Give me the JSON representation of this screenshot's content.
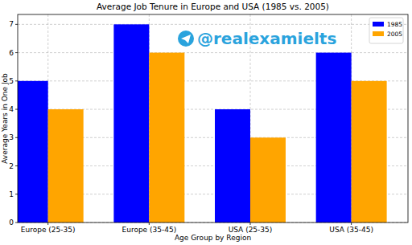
{
  "chart_data": {
    "type": "bar",
    "title": "Average Job Tenure in Europe and USA (1985 vs. 2005)",
    "x_label": "Age Group by Region",
    "y_label": "Average Years in One Job",
    "annotations": [
      "@realexamielts"
    ],
    "categories": [
      "Europe (25-35)",
      "Europe (35-45)",
      "USA (25-35)",
      "USA (35-45)"
    ],
    "series": [
      {
        "name": "1985",
        "color": "#0000ff",
        "values": [
          5,
          7,
          4,
          6
        ]
      },
      {
        "name": "2005",
        "color": "#ffa500",
        "values": [
          4,
          6,
          3,
          5
        ]
      }
    ],
    "ylim": [
      0,
      7.35
    ],
    "yticks": [
      0,
      1,
      2,
      3,
      4,
      5,
      6,
      7
    ],
    "grid": true,
    "legend": "upper right"
  }
}
